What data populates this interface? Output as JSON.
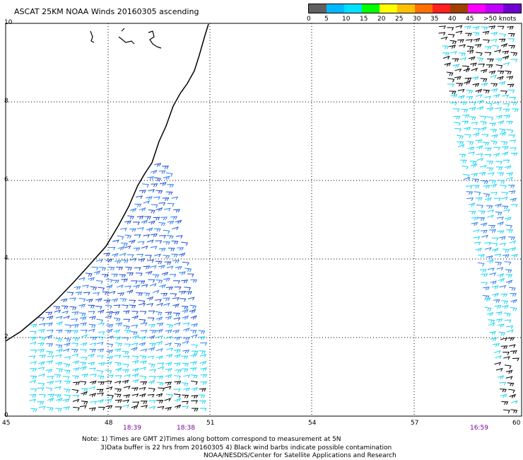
{
  "title": "ASCAT 25KM NOAA Winds 20160305 ascending",
  "colorbar": {
    "colors": [
      "#606060",
      "#00b8ff",
      "#00e0ff",
      "#00ff00",
      "#ffff00",
      "#ffc000",
      "#ff7000",
      "#ff2020",
      "#a04000",
      "#ff00ff",
      "#c000ff",
      "#7000d0"
    ],
    "labels": [
      "0",
      "5",
      "10",
      "15",
      "20",
      "25",
      "30",
      "35",
      "40",
      "45",
      ">50 knots"
    ]
  },
  "y_axis": {
    "ticks": [
      "10",
      "8",
      "6",
      "4",
      "2",
      "0"
    ]
  },
  "x_axis": {
    "ticks": [
      "45",
      "48",
      "51",
      "54",
      "57",
      "60"
    ]
  },
  "pass_times": [
    "18:39",
    "18:38",
    "16:59"
  ],
  "notes": [
    "Note: 1) Times are GMT 2)Times along bottom correspond to measurement at 5N",
    "3)Data buffer is 22 hrs from 20160305 4) Black wind barbs indicate possible contamination",
    "NOAA/NESDIS/Center for Satellite Applications and Research"
  ],
  "barb_colors": {
    "dark_blue": "#1f4fd0",
    "blue": "#2d7cf0",
    "cyan": "#19d3f0",
    "contaminated": "#000000"
  }
}
